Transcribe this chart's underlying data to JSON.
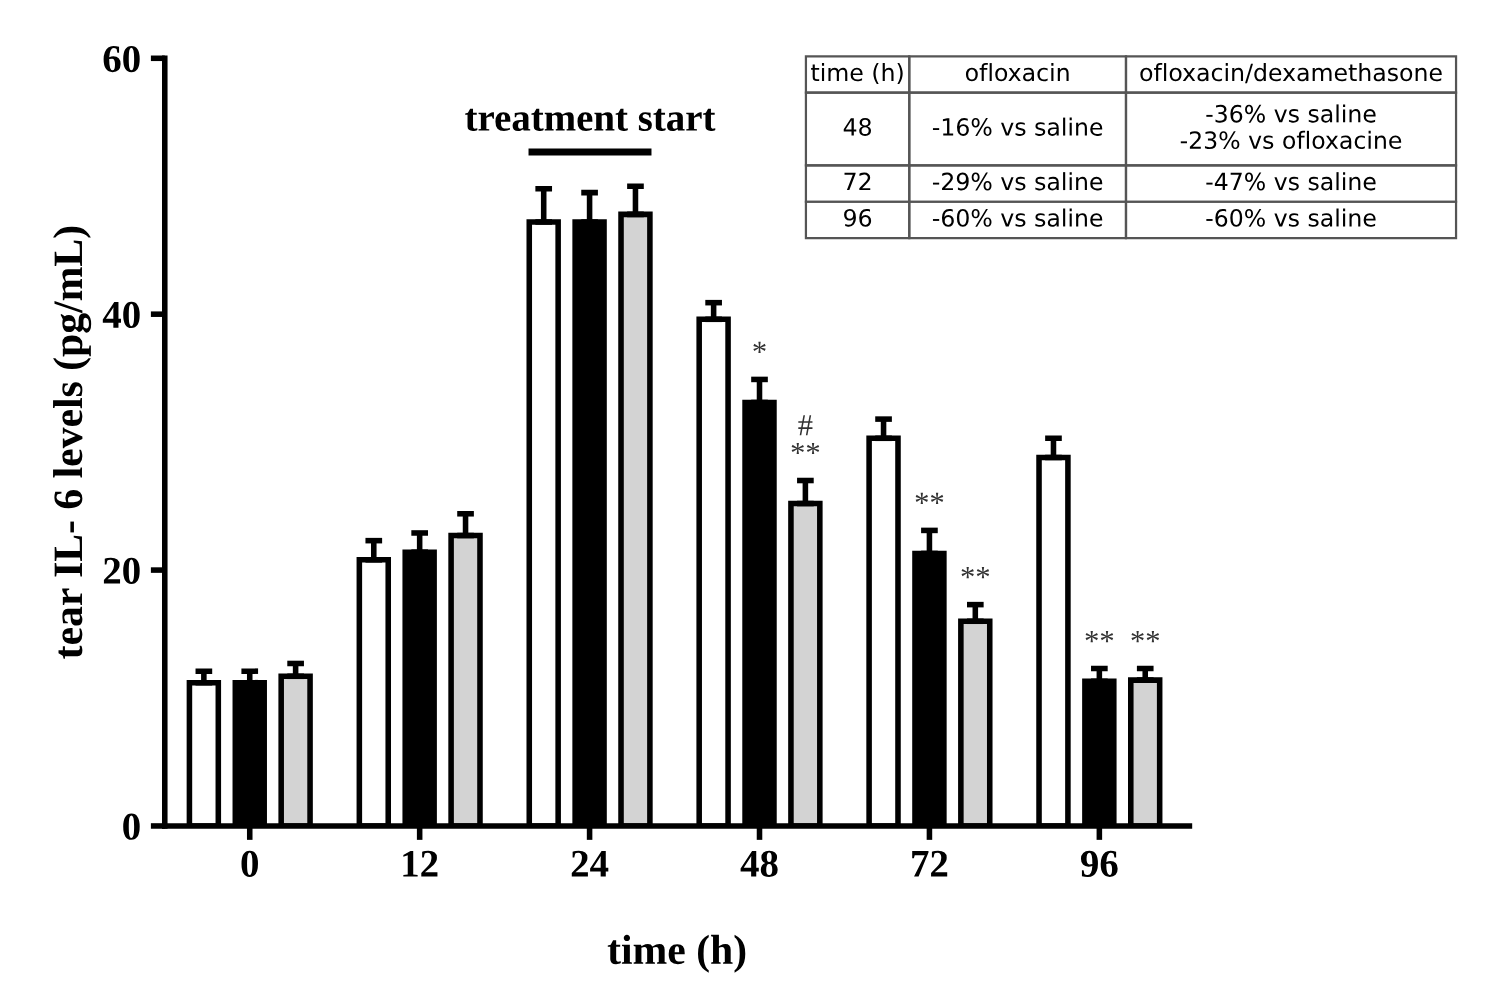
{
  "chart_data": {
    "type": "bar",
    "xlabel": "time (h)",
    "ylabel": "tear IL- 6 levels (pg/mL)",
    "categories": [
      "0",
      "12",
      "24",
      "48",
      "72",
      "96"
    ],
    "series": [
      {
        "color": "#ffffff",
        "values": [
          11.2,
          20.8,
          47.2,
          39.6,
          30.3,
          28.8
        ],
        "errors": [
          [
            11.2,
            12.1
          ],
          [
            20.8,
            22.3
          ],
          [
            47.2,
            49.8
          ],
          [
            39.6,
            40.9
          ],
          [
            30.3,
            31.8
          ],
          [
            28.8,
            30.3
          ]
        ]
      },
      {
        "color": "#000000",
        "values": [
          11.2,
          21.4,
          47.2,
          33.1,
          21.3,
          11.3
        ],
        "errors": [
          [
            11.2,
            12.1
          ],
          [
            21.4,
            22.9
          ],
          [
            47.2,
            49.5
          ],
          [
            33.1,
            34.9
          ],
          [
            21.3,
            23.1
          ],
          [
            11.3,
            12.3
          ]
        ],
        "value_labels": [
          null,
          null,
          null,
          "*",
          "**",
          "**"
        ]
      },
      {
        "color": "#d3d3d3",
        "values": [
          11.7,
          22.7,
          47.8,
          25.2,
          16.0,
          11.4
        ],
        "errors": [
          [
            11.7,
            12.7
          ],
          [
            22.7,
            24.4
          ],
          [
            47.8,
            50.0
          ],
          [
            25.2,
            27.0
          ],
          [
            16.0,
            17.3
          ],
          [
            11.4,
            12.3
          ]
        ],
        "value_labels": [
          null,
          null,
          null,
          "#\n**",
          "**",
          "**"
        ]
      }
    ],
    "ylim": [
      0,
      60
    ],
    "yticks": [
      0,
      20,
      40,
      60
    ],
    "grid": false,
    "legend": false,
    "annotations": [
      "treatment start",
      "time (h)",
      "ofloxacin",
      "ofloxacin/dexamethasone",
      "48",
      "-16% vs saline",
      "-36% vs saline\n-23% vs ofloxacine",
      "72",
      "-29% vs saline",
      "-47% vs saline",
      "96",
      "-60% vs saline",
      "-60% vs saline"
    ]
  }
}
